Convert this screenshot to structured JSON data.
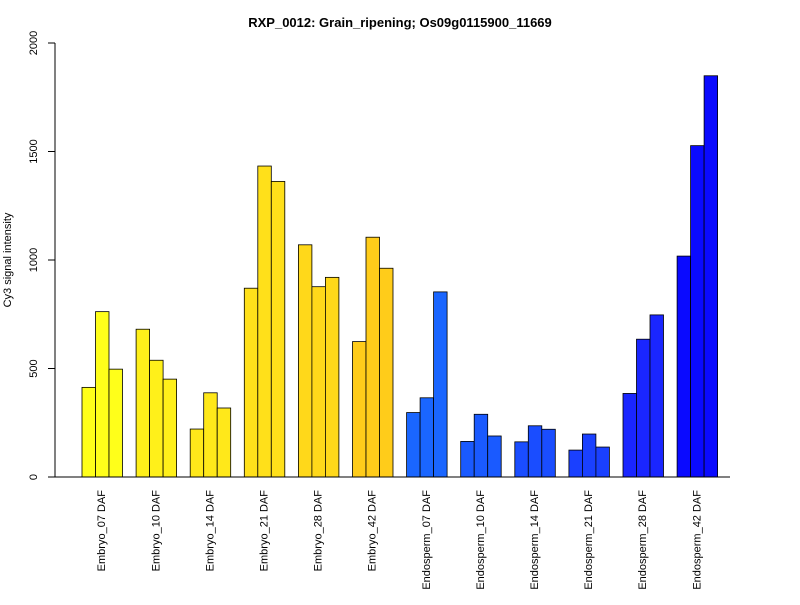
{
  "chart_data": {
    "type": "bar",
    "title": "RXP_0012: Grain_ripening; Os09g0115900_11669",
    "xlabel": "",
    "ylabel": "Cy3 signal intensity",
    "ylim": [
      0,
      2000
    ],
    "yticks": [
      0,
      500,
      1000,
      1500,
      2000
    ],
    "grid": false,
    "legend": "none",
    "groups": [
      {
        "label": "Embryo_07 DAF",
        "values": [
          413,
          762,
          497
        ],
        "color": "#FFFF1A"
      },
      {
        "label": "Embryo_10 DAF",
        "values": [
          681,
          538,
          451
        ],
        "color": "#FFF01A"
      },
      {
        "label": "Embryo_14 DAF",
        "values": [
          221,
          388,
          318
        ],
        "color": "#FFE81A"
      },
      {
        "label": "Embryo_21 DAF",
        "values": [
          870,
          1433,
          1362
        ],
        "color": "#FFE01A"
      },
      {
        "label": "Embryo_28 DAF",
        "values": [
          1070,
          877,
          920
        ],
        "color": "#FFD81A"
      },
      {
        "label": "Embryo_42 DAF",
        "values": [
          624,
          1105,
          962
        ],
        "color": "#FFCC1A"
      },
      {
        "label": "Endosperm_07 DAF",
        "values": [
          297,
          365,
          853
        ],
        "color": "#1A66FF"
      },
      {
        "label": "Endosperm_10 DAF",
        "values": [
          164,
          289,
          189
        ],
        "color": "#1A5AFF"
      },
      {
        "label": "Endosperm_14 DAF",
        "values": [
          162,
          236,
          220
        ],
        "color": "#1A4DFF"
      },
      {
        "label": "Endosperm_21 DAF",
        "values": [
          124,
          198,
          138
        ],
        "color": "#1A40FF"
      },
      {
        "label": "Endosperm_28 DAF",
        "values": [
          385,
          635,
          747
        ],
        "color": "#1A26FF"
      },
      {
        "label": "Endosperm_42 DAF",
        "values": [
          1018,
          1527,
          1849
        ],
        "color": "#0A0AFF"
      }
    ]
  }
}
